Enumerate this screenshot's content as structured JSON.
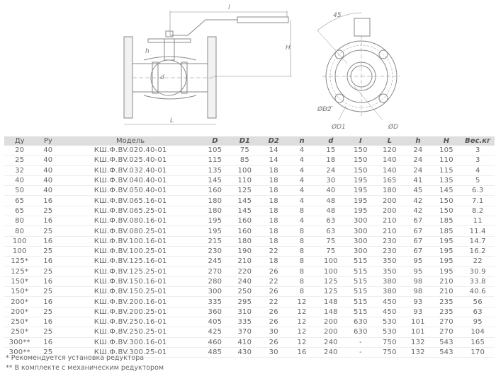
{
  "drawing": {
    "side_view_labels": {
      "l": "l",
      "H": "H",
      "h": "h",
      "d": "d",
      "L": "L"
    },
    "front_view_labels": {
      "angle": "45",
      "D2": "ØD2",
      "D1": "ØD1",
      "D": "ØD"
    }
  },
  "table": {
    "headers": [
      "Ду",
      "Ру",
      "Модель",
      "D",
      "D1",
      "D2",
      "n",
      "d",
      "I",
      "L",
      "h",
      "H",
      "Вес.кг"
    ],
    "rows": [
      [
        "20",
        "40",
        "КШ.Ф.BV.020.40-01",
        "105",
        "75",
        "14",
        "4",
        "15",
        "150",
        "120",
        "24",
        "105",
        "3"
      ],
      [
        "25",
        "40",
        "КШ.Ф.BV.025.40-01",
        "115",
        "85",
        "14",
        "4",
        "18",
        "150",
        "140",
        "24",
        "110",
        "3"
      ],
      [
        "32",
        "40",
        "КШ.Ф.BV.032.40-01",
        "135",
        "100",
        "18",
        "4",
        "24",
        "150",
        "140",
        "24",
        "115",
        "4"
      ],
      [
        "40",
        "40",
        "КШ.Ф.BV.040.40-01",
        "145",
        "110",
        "18",
        "4",
        "30",
        "195",
        "165",
        "41",
        "135",
        "5"
      ],
      [
        "50",
        "40",
        "КШ.Ф.BV.050.40-01",
        "160",
        "125",
        "18",
        "4",
        "40",
        "195",
        "180",
        "45",
        "145",
        "6.3"
      ],
      [
        "65",
        "16",
        "КШ.Ф.BV.065.16-01",
        "180",
        "145",
        "18",
        "4",
        "48",
        "195",
        "200",
        "42",
        "150",
        "7.1"
      ],
      [
        "65",
        "25",
        "КШ.Ф.BV.065.25-01",
        "180",
        "145",
        "18",
        "8",
        "48",
        "195",
        "200",
        "42",
        "150",
        "8.2"
      ],
      [
        "80",
        "16",
        "КШ.Ф.BV.080.16-01",
        "195",
        "160",
        "18",
        "4",
        "63",
        "300",
        "210",
        "67",
        "185",
        "11"
      ],
      [
        "80",
        "25",
        "КШ.Ф.BV.080.25-01",
        "195",
        "160",
        "18",
        "8",
        "63",
        "300",
        "210",
        "67",
        "185",
        "11.4"
      ],
      [
        "100",
        "16",
        "КШ.Ф.BV.100.16-01",
        "215",
        "180",
        "18",
        "8",
        "75",
        "300",
        "230",
        "67",
        "195",
        "14.7"
      ],
      [
        "100",
        "25",
        "КШ.Ф.BV.100.25-01",
        "230",
        "190",
        "22",
        "8",
        "75",
        "300",
        "230",
        "67",
        "195",
        "16.2"
      ],
      [
        "125*",
        "16",
        "КШ.Ф.BV.125.16-01",
        "245",
        "210",
        "18",
        "8",
        "100",
        "515",
        "350",
        "95",
        "195",
        "22"
      ],
      [
        "125*",
        "25",
        "КШ.Ф.BV.125.25-01",
        "270",
        "220",
        "26",
        "8",
        "100",
        "515",
        "350",
        "95",
        "195",
        "30.9"
      ],
      [
        "150*",
        "16",
        "КШ.Ф.BV.150.16-01",
        "280",
        "240",
        "22",
        "8",
        "125",
        "515",
        "380",
        "98",
        "210",
        "33.8"
      ],
      [
        "150*",
        "25",
        "КШ.Ф.BV.150.25-01",
        "300",
        "250",
        "26",
        "8",
        "125",
        "515",
        "380",
        "98",
        "210",
        "40.6"
      ],
      [
        "200*",
        "16",
        "КШ.Ф.BV.200.16-01",
        "335",
        "295",
        "22",
        "12",
        "148",
        "515",
        "450",
        "93",
        "235",
        "56"
      ],
      [
        "200*",
        "25",
        "КШ.Ф.BV.200.25-01",
        "360",
        "310",
        "26",
        "12",
        "148",
        "515",
        "450",
        "93",
        "235",
        "63"
      ],
      [
        "250*",
        "16",
        "КШ.Ф.BV.250.16-01",
        "405",
        "335",
        "26",
        "12",
        "200",
        "630",
        "530",
        "101",
        "270",
        "95"
      ],
      [
        "250*",
        "25",
        "КШ.Ф.BV.250.25-01",
        "425",
        "370",
        "30",
        "12",
        "200",
        "630",
        "530",
        "101",
        "270",
        "104"
      ],
      [
        "300**",
        "16",
        "КШ.Ф.BV.300.16-01",
        "460",
        "410",
        "26",
        "12",
        "240",
        "-",
        "750",
        "132",
        "543",
        "165"
      ],
      [
        "300**",
        "25",
        "КШ.Ф.BV.300.25-01",
        "485",
        "430",
        "30",
        "16",
        "240",
        "-",
        "750",
        "132",
        "543",
        "170"
      ]
    ]
  },
  "notes": [
    "* Рекомендуется установка редуктора",
    "** В комплекте с механическим редуктором"
  ]
}
